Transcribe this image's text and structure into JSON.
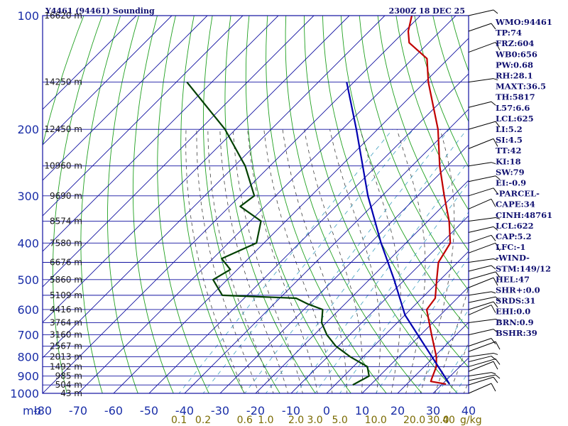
{
  "header": {
    "station": "Y4461 (94461) Sounding",
    "time": "2300Z 18 DEC 25"
  },
  "axis": {
    "pressure_unit": "mb",
    "mixing_ratio_unit": "g/kg"
  },
  "chart_data": {
    "type": "line",
    "title": "Y4461 (94461) Sounding",
    "subtitle": "2300Z 18 DEC 25",
    "xlabel": "",
    "ylabel": "mb",
    "x_ticks": [
      -80,
      -70,
      -60,
      -50,
      -40,
      -30,
      -20,
      -10,
      0,
      10,
      20,
      30,
      40
    ],
    "xlim": [
      -80,
      40
    ],
    "y_ticks": [
      100,
      200,
      300,
      400,
      500,
      600,
      700,
      800,
      900,
      1000
    ],
    "ylim": [
      1000,
      100
    ],
    "y_scale": "log",
    "skew": "temperature lines skewed 45 degrees",
    "height_labels": [
      {
        "p": 100,
        "label": "16620 m"
      },
      {
        "p": 150,
        "label": "14250 m"
      },
      {
        "p": 200,
        "label": "12450 m"
      },
      {
        "p": 250,
        "label": "10960 m"
      },
      {
        "p": 300,
        "label": "9690 m"
      },
      {
        "p": 350,
        "label": "8574 m"
      },
      {
        "p": 400,
        "label": "7580 m"
      },
      {
        "p": 450,
        "label": "6676 m"
      },
      {
        "p": 500,
        "label": "5860 m"
      },
      {
        "p": 550,
        "label": "5109 m"
      },
      {
        "p": 600,
        "label": "4416 m"
      },
      {
        "p": 650,
        "label": "3764 m"
      },
      {
        "p": 700,
        "label": "3160 m"
      },
      {
        "p": 750,
        "label": "2567 m"
      },
      {
        "p": 800,
        "label": "2013 m"
      },
      {
        "p": 850,
        "label": "1492 m"
      },
      {
        "p": 900,
        "label": "985 m"
      },
      {
        "p": 950,
        "label": "504 m"
      },
      {
        "p": 1000,
        "label": "43 m"
      }
    ],
    "mixing_ratio_labels": [
      "0.1",
      "0.2",
      "0.6",
      "1.0",
      "2.0",
      "3.0",
      "5.0",
      "10.0",
      "20.0",
      "30.0",
      "40"
    ],
    "mixing_ratio_values": [
      0.1,
      0.2,
      0.6,
      1.0,
      2.0,
      3.0,
      5.0,
      10.0,
      20.0,
      30.0,
      40.0
    ],
    "series": [
      {
        "role": "temperature",
        "color": "#c00000",
        "points": [
          {
            "p": 945,
            "t": 31.0
          },
          {
            "p": 930,
            "t": 26.0
          },
          {
            "p": 915,
            "t": 25.5
          },
          {
            "p": 850,
            "t": 23.4
          },
          {
            "p": 800,
            "t": 20.6
          },
          {
            "p": 700,
            "t": 13.1
          },
          {
            "p": 600,
            "t": 4.6
          },
          {
            "p": 560,
            "t": 3.8
          },
          {
            "p": 500,
            "t": -1.0
          },
          {
            "p": 450,
            "t": -5.4
          },
          {
            "p": 400,
            "t": -7.5
          },
          {
            "p": 350,
            "t": -14.0
          },
          {
            "p": 300,
            "t": -22.5
          },
          {
            "p": 250,
            "t": -32.2
          },
          {
            "p": 200,
            "t": -43.0
          },
          {
            "p": 150,
            "t": -59.0
          },
          {
            "p": 130,
            "t": -66.0
          },
          {
            "p": 118,
            "t": -75.5
          },
          {
            "p": 110,
            "t": -79.0
          },
          {
            "p": 100,
            "t": -82.4
          }
        ]
      },
      {
        "role": "dewpoint",
        "color": "#004000",
        "points": [
          {
            "p": 950,
            "t": 5.0
          },
          {
            "p": 900,
            "t": 7.1
          },
          {
            "p": 850,
            "t": 4.0
          },
          {
            "p": 800,
            "t": -3.7
          },
          {
            "p": 750,
            "t": -10.7
          },
          {
            "p": 700,
            "t": -16.4
          },
          {
            "p": 650,
            "t": -21.3
          },
          {
            "p": 600,
            "t": -24.7
          },
          {
            "p": 580,
            "t": -30.5
          },
          {
            "p": 560,
            "t": -35.4
          },
          {
            "p": 550,
            "t": -57.0
          },
          {
            "p": 500,
            "t": -64.0
          },
          {
            "p": 470,
            "t": -62.0
          },
          {
            "p": 440,
            "t": -67.5
          },
          {
            "p": 400,
            "t": -62.1
          },
          {
            "p": 350,
            "t": -67.0
          },
          {
            "p": 320,
            "t": -77.0
          },
          {
            "p": 300,
            "t": -76.0
          },
          {
            "p": 250,
            "t": -87.0
          },
          {
            "p": 200,
            "t": -103.0
          },
          {
            "p": 150,
            "t": -127.0
          }
        ]
      },
      {
        "role": "parcel",
        "color": "#0000b0",
        "points": [
          {
            "p": 945,
            "t": 32.0
          },
          {
            "p": 620,
            "t": 0.0
          },
          {
            "p": 500,
            "t": -13.0
          },
          {
            "p": 400,
            "t": -27.0
          },
          {
            "p": 300,
            "t": -44.0
          },
          {
            "p": 200,
            "t": -66.0
          },
          {
            "p": 150,
            "t": -82.0
          }
        ]
      }
    ],
    "wind_barbs": [
      {
        "p": 1000
      },
      {
        "p": 950
      },
      {
        "p": 925
      },
      {
        "p": 900
      },
      {
        "p": 875
      },
      {
        "p": 850
      },
      {
        "p": 825
      },
      {
        "p": 800
      },
      {
        "p": 775
      },
      {
        "p": 750
      },
      {
        "p": 700
      },
      {
        "p": 650
      },
      {
        "p": 620
      },
      {
        "p": 600
      },
      {
        "p": 575
      },
      {
        "p": 550
      },
      {
        "p": 525
      },
      {
        "p": 500
      },
      {
        "p": 475
      },
      {
        "p": 450
      },
      {
        "p": 425
      },
      {
        "p": 400
      },
      {
        "p": 375
      },
      {
        "p": 350
      },
      {
        "p": 325
      },
      {
        "p": 300
      },
      {
        "p": 275
      },
      {
        "p": 250
      },
      {
        "p": 225
      },
      {
        "p": 200
      },
      {
        "p": 175
      },
      {
        "p": 150
      },
      {
        "p": 125
      },
      {
        "p": 110
      },
      {
        "p": 100
      }
    ],
    "colors": {
      "background": "#ffffff",
      "frame": "#1010a0",
      "isotherm": "#1010a0",
      "isobar": "#1010a0",
      "dry_adiabat": "#20a020",
      "moist_adiabat": "#404040",
      "mixing_ratio": "#40a0c0",
      "index_text": "#101070",
      "mixing_label": "#7a6a00"
    }
  },
  "indices": [
    "WMO:94461",
    "TP:74",
    "FRZ:604",
    "WB0:656",
    "PW:0.68",
    "RH:28.1",
    "MAXT:36.5",
    "TH:5817",
    "L57:6.6",
    "LCL:625",
    "LI:5.2",
    "SI:4.5",
    "TT:42",
    "KI:18",
    "SW:79",
    "EI:-0.9",
    "-PARCEL-",
    "CAPE:34",
    "CINH:48761",
    "LCL:622",
    "CAP:5.2",
    "LFC:-1",
    "-WIND-",
    "STM:149/12",
    "HEL:47",
    "SHR+:0.0",
    "SRDS:31",
    "EHI:0.0",
    "BRN:0.9",
    "BSHR:39"
  ]
}
